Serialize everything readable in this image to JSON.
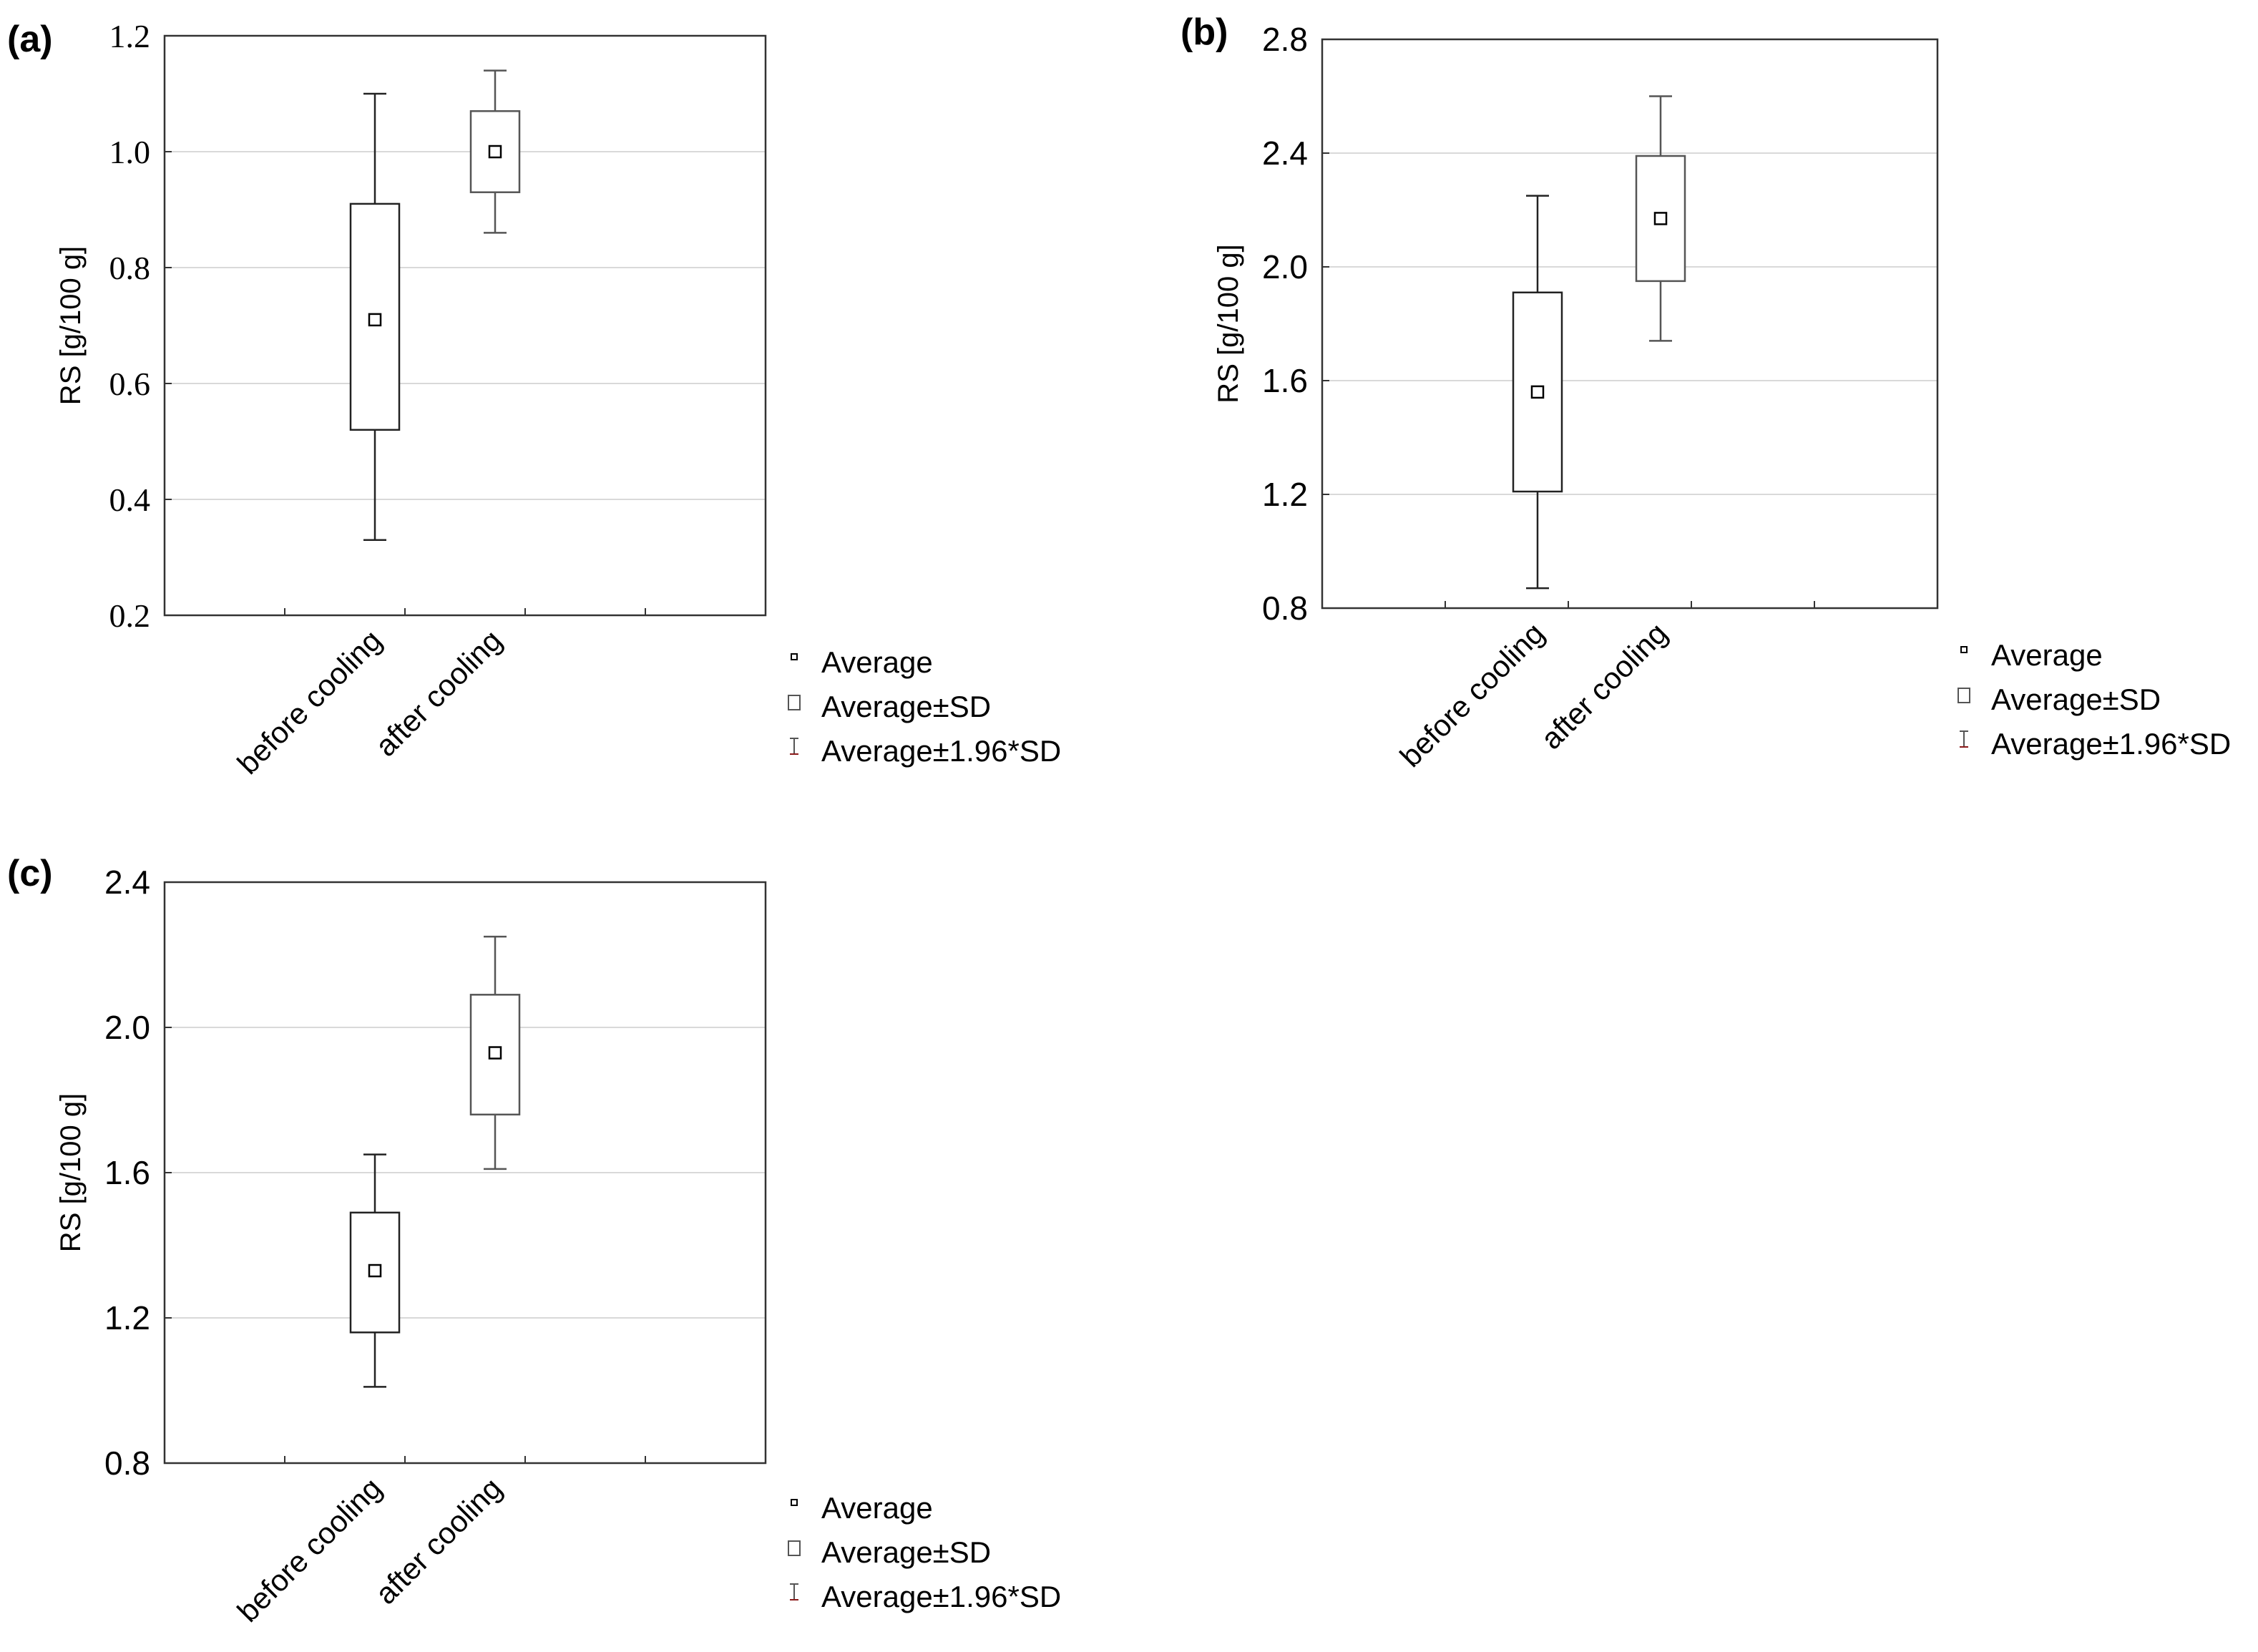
{
  "figure": {
    "legend": {
      "entries": [
        "Average",
        "Average±SD",
        "Average±1.96*SD"
      ],
      "colors": {
        "average": "#000000",
        "sd_box": "#000000",
        "whisker": "#8b1a1a"
      }
    }
  },
  "chart_data": [
    {
      "type": "box",
      "panel_label": "(a)",
      "ylabel": "RS [g/100 g]",
      "categories": [
        "before cooling",
        "after cooling"
      ],
      "ylim": [
        0.2,
        1.2
      ],
      "yticks": [
        "0.2",
        "0.4",
        "0.6",
        "0.8",
        "1.0",
        "1.2"
      ],
      "series": [
        {
          "name": "before cooling",
          "mean": 0.71,
          "sd_low": 0.52,
          "sd_high": 0.91,
          "whisker_low": 0.33,
          "whisker_high": 1.1
        },
        {
          "name": "after cooling",
          "mean": 1.0,
          "sd_low": 0.93,
          "sd_high": 1.07,
          "whisker_low": 0.86,
          "whisker_high": 1.14
        }
      ]
    },
    {
      "type": "box",
      "panel_label": "(b)",
      "ylabel": "RS [g/100 g]",
      "categories": [
        "before cooling",
        "after cooling"
      ],
      "ylim": [
        0.8,
        2.8
      ],
      "yticks": [
        "0.8",
        "1.2",
        "1.6",
        "2.0",
        "2.4",
        "2.8"
      ],
      "series": [
        {
          "name": "before cooling",
          "mean": 1.56,
          "sd_low": 1.21,
          "sd_high": 1.91,
          "whisker_low": 0.87,
          "whisker_high": 2.25
        },
        {
          "name": "after cooling",
          "mean": 2.17,
          "sd_low": 1.95,
          "sd_high": 2.39,
          "whisker_low": 1.74,
          "whisker_high": 2.6
        }
      ]
    },
    {
      "type": "box",
      "panel_label": "(c)",
      "ylabel": "RS [g/100 g]",
      "categories": [
        "before cooling",
        "after cooling"
      ],
      "ylim": [
        0.8,
        2.4
      ],
      "yticks": [
        "0.8",
        "1.2",
        "1.6",
        "2.0",
        "2.4"
      ],
      "series": [
        {
          "name": "before cooling",
          "mean": 1.33,
          "sd_low": 1.16,
          "sd_high": 1.49,
          "whisker_low": 1.01,
          "whisker_high": 1.65
        },
        {
          "name": "after cooling",
          "mean": 1.93,
          "sd_low": 1.76,
          "sd_high": 2.09,
          "whisker_low": 1.61,
          "whisker_high": 2.25
        }
      ]
    }
  ]
}
